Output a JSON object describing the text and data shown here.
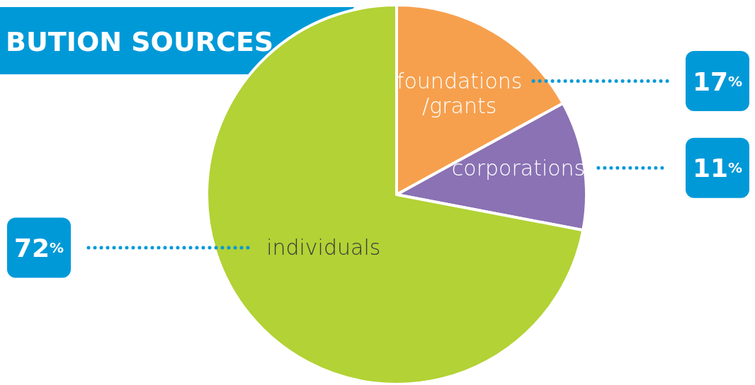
{
  "chart_data": {
    "type": "pie",
    "title": "BUTION SOURCES",
    "categories": [
      "foundations /grants",
      "corporations",
      "individuals"
    ],
    "values": [
      17,
      11,
      72
    ],
    "colors": [
      "#f6a04e",
      "#8a72b4",
      "#b2d235"
    ],
    "value_labels": [
      "17$^{%}$",
      "11$^{%}$",
      "72$^{%}$"
    ]
  }
}
